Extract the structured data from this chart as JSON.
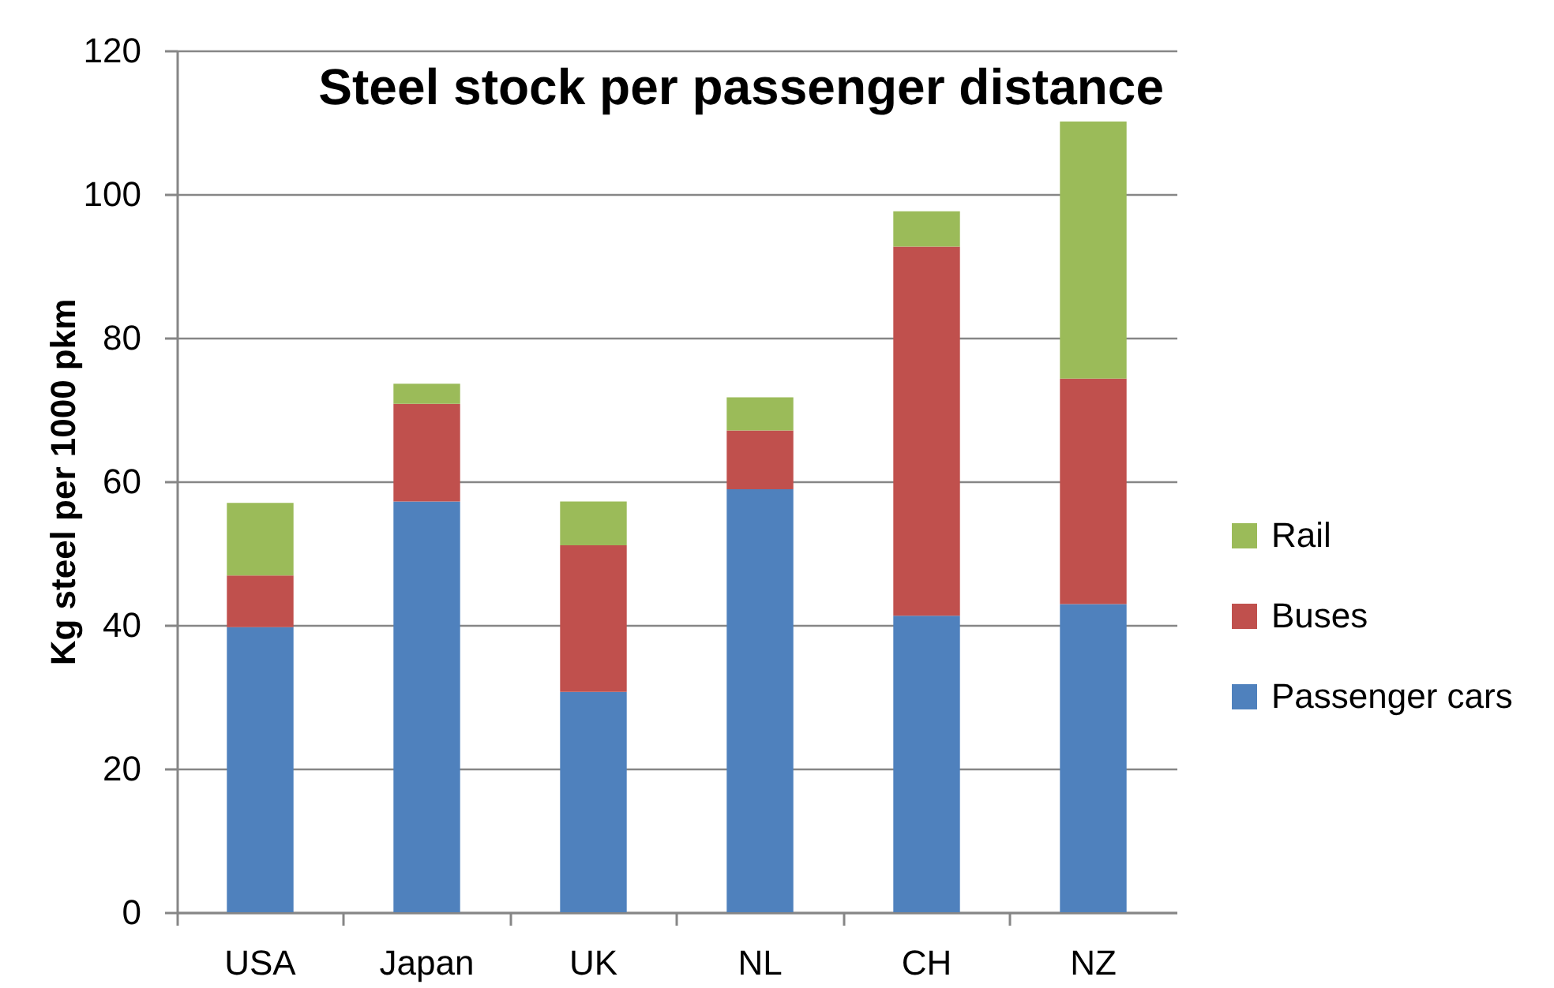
{
  "chart_data": {
    "type": "bar",
    "title": "Steel stock per passenger distance",
    "ylabel": "Kg steel per 1000 pkm",
    "categories": [
      "USA",
      "Japan",
      "UK",
      "NL",
      "CH",
      "NZ"
    ],
    "stacked": true,
    "series": [
      {
        "name": "Passenger cars",
        "color": "#4f81bd",
        "values": [
          39.7,
          57.2,
          30.7,
          58.9,
          41.3,
          42.9
        ]
      },
      {
        "name": "Buses",
        "color": "#c0504d",
        "values": [
          7.2,
          13.6,
          20.4,
          8.2,
          51.4,
          31.4
        ]
      },
      {
        "name": "Rail",
        "color": "#9bbb59",
        "values": [
          10.1,
          2.8,
          6.1,
          4.6,
          4.9,
          35.8
        ]
      }
    ],
    "ylim": [
      0,
      120
    ],
    "yticks": [
      0,
      20,
      40,
      60,
      80,
      100,
      120
    ],
    "grid": "y",
    "legend": "right"
  }
}
